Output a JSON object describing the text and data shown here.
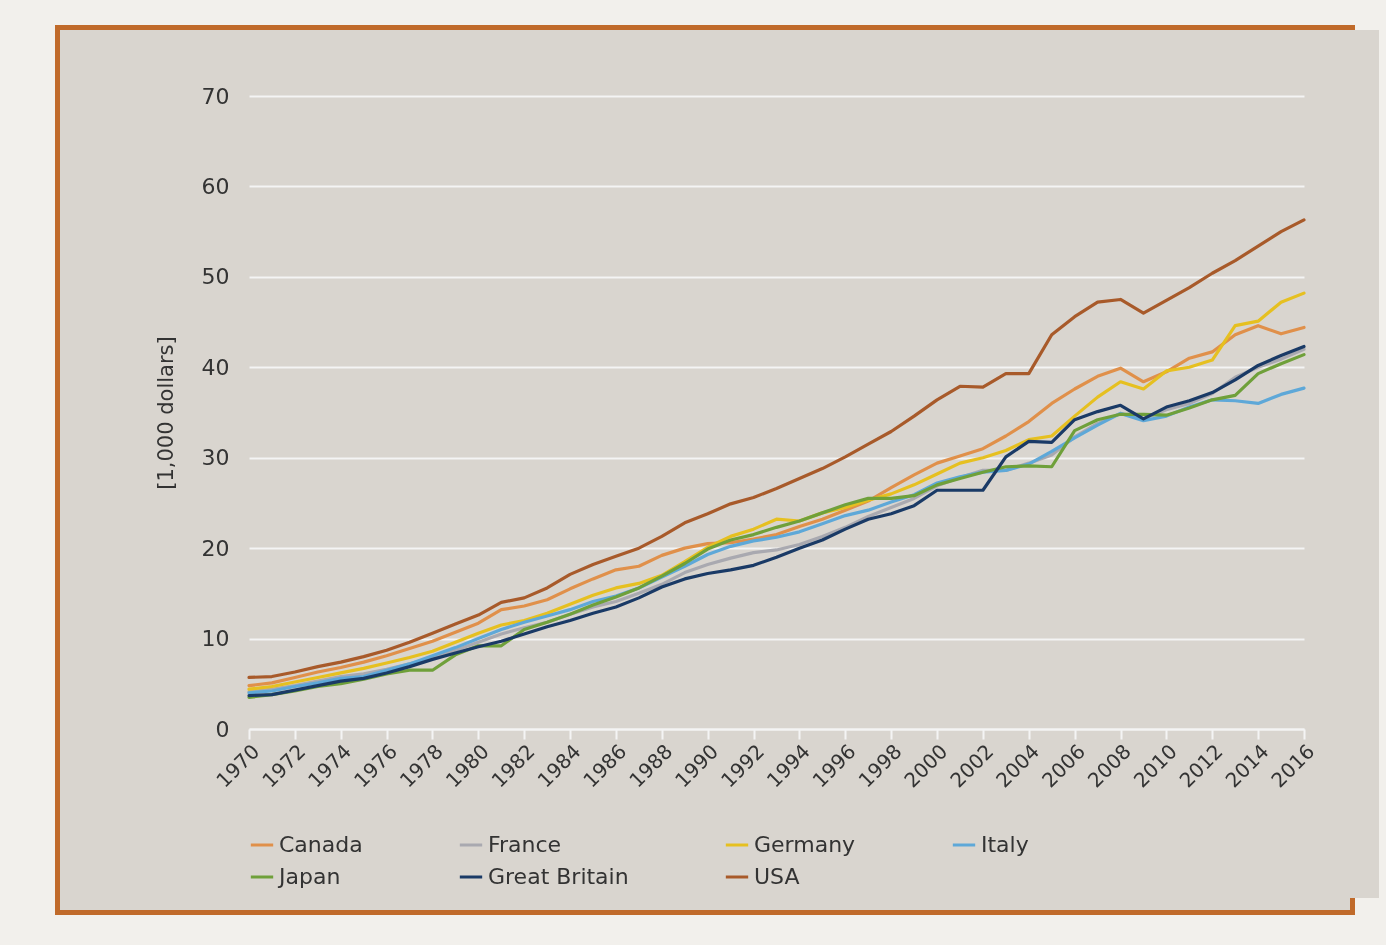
{
  "chart_data": {
    "type": "line",
    "ylabel": "[1,000 dollars]",
    "x": [
      1970,
      1971,
      1972,
      1973,
      1974,
      1975,
      1976,
      1977,
      1978,
      1979,
      1980,
      1981,
      1982,
      1983,
      1984,
      1985,
      1986,
      1987,
      1988,
      1989,
      1990,
      1991,
      1992,
      1993,
      1994,
      1995,
      1996,
      1997,
      1998,
      1999,
      2000,
      2001,
      2002,
      2003,
      2004,
      2005,
      2006,
      2007,
      2008,
      2009,
      2010,
      2011,
      2012,
      2013,
      2014,
      2015,
      2016
    ],
    "xlim": [
      1970,
      2016
    ],
    "xticks": [
      1970,
      1972,
      1974,
      1976,
      1978,
      1980,
      1982,
      1984,
      1986,
      1988,
      1990,
      1992,
      1994,
      1996,
      1998,
      2000,
      2002,
      2004,
      2006,
      2008,
      2010,
      2012,
      2014,
      2016
    ],
    "ylim": [
      0,
      70
    ],
    "yticks": [
      0,
      10,
      20,
      30,
      40,
      50,
      60,
      70
    ],
    "grid": "y",
    "legend": "bottom",
    "line_style": "solid",
    "marker": "none",
    "series": [
      {
        "name": "Canada",
        "color": "#e0904a",
        "values": [
          4.8,
          5.1,
          5.7,
          6.3,
          6.8,
          7.4,
          8.1,
          8.9,
          9.7,
          10.7,
          11.7,
          13.2,
          13.6,
          14.3,
          15.5,
          16.6,
          17.6,
          18.0,
          19.2,
          20.0,
          20.5,
          20.6,
          21.0,
          21.5,
          22.4,
          23.2,
          24.2,
          25.2,
          26.7,
          28.1,
          29.4,
          30.2,
          31.0,
          32.4,
          34.0,
          36.0,
          37.6,
          39.0,
          39.9,
          38.4,
          39.5,
          41.0,
          41.7,
          43.6,
          44.6,
          43.7,
          44.4
        ]
      },
      {
        "name": "France",
        "color": "#a9a9b0",
        "values": [
          4.1,
          4.4,
          4.8,
          5.3,
          5.8,
          6.1,
          6.6,
          7.2,
          7.9,
          8.7,
          9.6,
          10.5,
          11.2,
          11.8,
          12.7,
          13.5,
          14.1,
          15.0,
          16.0,
          17.3,
          18.2,
          18.9,
          19.5,
          19.8,
          20.4,
          21.3,
          22.3,
          23.5,
          24.5,
          25.5,
          26.9,
          27.8,
          28.6,
          28.6,
          29.4,
          30.3,
          32.3,
          33.8,
          34.9,
          34.3,
          35.3,
          36.0,
          37.1,
          38.9,
          40.0,
          40.9,
          42.0
        ]
      },
      {
        "name": "Germany",
        "color": "#e6c020",
        "values": [
          4.4,
          4.7,
          5.2,
          5.7,
          6.2,
          6.7,
          7.3,
          7.9,
          8.6,
          9.6,
          10.6,
          11.5,
          12.0,
          12.8,
          13.8,
          14.8,
          15.6,
          16.1,
          17.0,
          18.5,
          20.1,
          21.3,
          22.1,
          23.2,
          23.0,
          23.9,
          24.5,
          25.3,
          26.0,
          27.0,
          28.2,
          29.4,
          30.0,
          30.8,
          32.0,
          32.4,
          34.6,
          36.7,
          38.4,
          37.6,
          39.6,
          40.0,
          40.8,
          44.6,
          45.1,
          47.2,
          48.2
        ]
      },
      {
        "name": "Italy",
        "color": "#5ea8d8",
        "values": [
          4.0,
          4.2,
          4.7,
          5.1,
          5.6,
          5.8,
          6.5,
          7.2,
          8.1,
          9.0,
          10.0,
          11.0,
          11.8,
          12.5,
          13.2,
          14.1,
          14.7,
          15.6,
          16.8,
          18.0,
          19.3,
          20.2,
          20.8,
          21.2,
          21.8,
          22.7,
          23.6,
          24.2,
          25.1,
          25.9,
          27.2,
          27.9,
          28.4,
          28.6,
          29.3,
          30.7,
          32.2,
          33.6,
          34.9,
          34.1,
          34.6,
          35.6,
          36.4,
          36.3,
          36.0,
          37.0,
          37.7
        ]
      },
      {
        "name": "Japan",
        "color": "#6fa03a",
        "values": [
          3.5,
          3.8,
          4.2,
          4.7,
          5.0,
          5.5,
          6.1,
          6.5,
          6.5,
          8.2,
          9.2,
          9.2,
          11.0,
          11.8,
          12.7,
          13.7,
          14.6,
          15.6,
          16.9,
          18.3,
          19.9,
          20.9,
          21.5,
          22.3,
          23.0,
          23.9,
          24.8,
          25.5,
          25.5,
          25.8,
          27.0,
          27.7,
          28.4,
          29.0,
          29.1,
          29.0,
          33.0,
          34.2,
          34.8,
          34.8,
          34.7,
          35.5,
          36.4,
          36.9,
          39.3,
          40.4,
          41.4
        ]
      },
      {
        "name": "Great Britain",
        "color": "#1a3a66",
        "values": [
          3.7,
          3.8,
          4.3,
          4.8,
          5.3,
          5.6,
          6.2,
          6.9,
          7.7,
          8.4,
          9.1,
          9.7,
          10.5,
          11.3,
          12.0,
          12.8,
          13.5,
          14.5,
          15.7,
          16.6,
          17.2,
          17.6,
          18.1,
          19.0,
          20.0,
          20.9,
          22.1,
          23.2,
          23.8,
          24.7,
          26.4,
          26.4,
          26.4,
          30.1,
          31.8,
          31.7,
          34.2,
          35.1,
          35.8,
          34.3,
          35.6,
          36.3,
          37.2,
          38.6,
          40.2,
          41.3,
          42.3
        ]
      },
      {
        "name": "USA",
        "color": "#a85a2a",
        "values": [
          5.7,
          5.8,
          6.3,
          6.9,
          7.4,
          8.0,
          8.7,
          9.6,
          10.6,
          11.6,
          12.6,
          14.0,
          14.5,
          15.6,
          17.1,
          18.2,
          19.1,
          20.0,
          21.3,
          22.8,
          23.8,
          24.9,
          25.6,
          26.6,
          27.7,
          28.8,
          30.1,
          31.5,
          32.9,
          34.6,
          36.4,
          37.9,
          37.8,
          39.3,
          39.3,
          43.6,
          45.6,
          47.2,
          47.5,
          46.0,
          47.4,
          48.8,
          50.4,
          51.8,
          53.4,
          55.0,
          56.3
        ]
      }
    ]
  }
}
